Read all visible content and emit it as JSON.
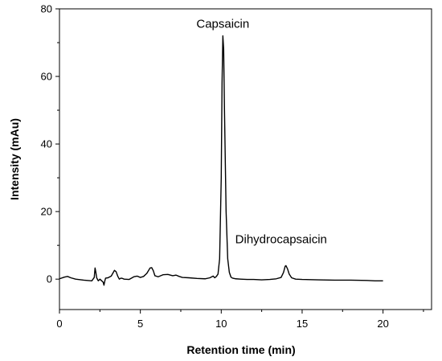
{
  "chart_data": {
    "type": "line",
    "xlabel": "Retention time (min)",
    "ylabel": "Intensity (mAu)",
    "xlim": [
      0,
      23
    ],
    "ylim": [
      -9,
      80
    ],
    "x_ticks": [
      "0",
      "5",
      "10",
      "15",
      "20"
    ],
    "y_ticks": [
      "0",
      "20",
      "40",
      "60",
      "80"
    ],
    "grid": false,
    "annotations": [
      {
        "text": "Capsaicin",
        "x": 10.1,
        "y": 72
      },
      {
        "text": "Dihydrocapsaicin",
        "x": 14.0,
        "y": 4
      }
    ],
    "series": [
      {
        "color": "#000000",
        "x": [
          0.0,
          0.3,
          0.5,
          0.7,
          1.0,
          1.5,
          2.0,
          2.15,
          2.2,
          2.25,
          2.3,
          2.4,
          2.5,
          2.7,
          2.75,
          2.8,
          2.85,
          3.0,
          3.2,
          3.4,
          3.5,
          3.6,
          3.7,
          3.8,
          3.9,
          4.0,
          4.3,
          4.6,
          4.8,
          5.0,
          5.2,
          5.4,
          5.6,
          5.7,
          5.8,
          5.9,
          6.1,
          6.4,
          6.7,
          7.0,
          7.2,
          7.4,
          7.6,
          8.0,
          8.5,
          9.0,
          9.3,
          9.5,
          9.6,
          9.7,
          9.8,
          9.9,
          10.0,
          10.05,
          10.1,
          10.15,
          10.2,
          10.3,
          10.4,
          10.5,
          10.6,
          10.7,
          10.9,
          11.2,
          11.6,
          12.0,
          12.5,
          13.0,
          13.4,
          13.7,
          13.85,
          13.95,
          14.0,
          14.1,
          14.2,
          14.35,
          14.6,
          15.0,
          16.0,
          17.0,
          18.0,
          19.0,
          19.5,
          20.0
        ],
        "values": [
          0.1,
          0.6,
          0.8,
          0.4,
          0.0,
          -0.3,
          -0.5,
          0.5,
          3.3,
          2.0,
          0.4,
          -0.5,
          0.0,
          -0.9,
          -1.8,
          -0.6,
          0.3,
          0.4,
          0.9,
          2.6,
          2.2,
          0.9,
          0.0,
          0.3,
          0.2,
          0.0,
          -0.1,
          0.7,
          0.9,
          0.5,
          0.8,
          1.7,
          3.3,
          3.4,
          2.5,
          1.0,
          0.7,
          1.3,
          1.4,
          1.0,
          1.2,
          0.8,
          0.5,
          0.4,
          0.2,
          0.1,
          0.4,
          0.9,
          0.4,
          0.8,
          1.5,
          6.0,
          30.0,
          58.0,
          72.0,
          68.0,
          50.0,
          20.0,
          6.0,
          2.0,
          0.6,
          0.3,
          0.1,
          0.0,
          -0.1,
          -0.1,
          -0.2,
          -0.1,
          0.1,
          0.5,
          2.0,
          3.8,
          4.0,
          3.0,
          1.5,
          0.4,
          0.0,
          -0.1,
          -0.2,
          -0.3,
          -0.3,
          -0.4,
          -0.5,
          -0.5
        ]
      }
    ]
  }
}
